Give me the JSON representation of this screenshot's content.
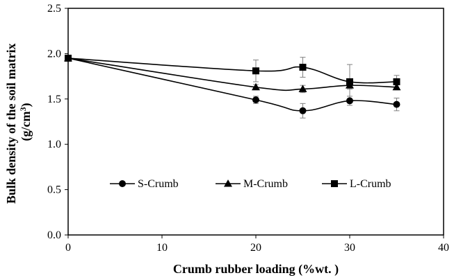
{
  "chart_data": {
    "type": "line",
    "xlabel": "Crumb rubber loading (%wt. )",
    "ylabel_line1": "Bulk density of the soil matrix",
    "ylabel_line2_prefix": "(g/cm",
    "ylabel_line2_sup": "3",
    "ylabel_line2_suffix": ")",
    "xlim": [
      0,
      40
    ],
    "ylim": [
      0.0,
      2.5
    ],
    "xticks": [
      0,
      10,
      20,
      30,
      40
    ],
    "xtick_labels": [
      "0",
      "10",
      "20",
      "30",
      "40"
    ],
    "yticks": [
      0.0,
      0.5,
      1.0,
      1.5,
      2.0,
      2.5
    ],
    "ytick_labels": [
      "0.0",
      "0.5",
      "1.0",
      "1.5",
      "2.0",
      "2.5"
    ],
    "grid": false,
    "legend_position": "inside-lower-center",
    "series": [
      {
        "name": "S-Crumb",
        "marker": "circle",
        "x": [
          0,
          20,
          25,
          30,
          35
        ],
        "y": [
          1.95,
          1.49,
          1.37,
          1.48,
          1.44
        ],
        "err": [
          0.0,
          0.04,
          0.08,
          0.05,
          0.07
        ]
      },
      {
        "name": "M-Crumb",
        "marker": "triangle",
        "x": [
          0,
          20,
          25,
          30,
          35
        ],
        "y": [
          1.95,
          1.63,
          1.61,
          1.65,
          1.63
        ],
        "err": [
          0.0,
          0.03,
          0.04,
          0.04,
          0.03
        ]
      },
      {
        "name": "L-Crumb",
        "marker": "square",
        "x": [
          0,
          20,
          25,
          30,
          35
        ],
        "y": [
          1.95,
          1.81,
          1.85,
          1.69,
          1.69
        ],
        "err": [
          0.0,
          0.12,
          0.11,
          0.19,
          0.07
        ]
      }
    ],
    "colors": {
      "line": "#000000",
      "marker": "#000000",
      "errorbar": "#808080"
    }
  }
}
